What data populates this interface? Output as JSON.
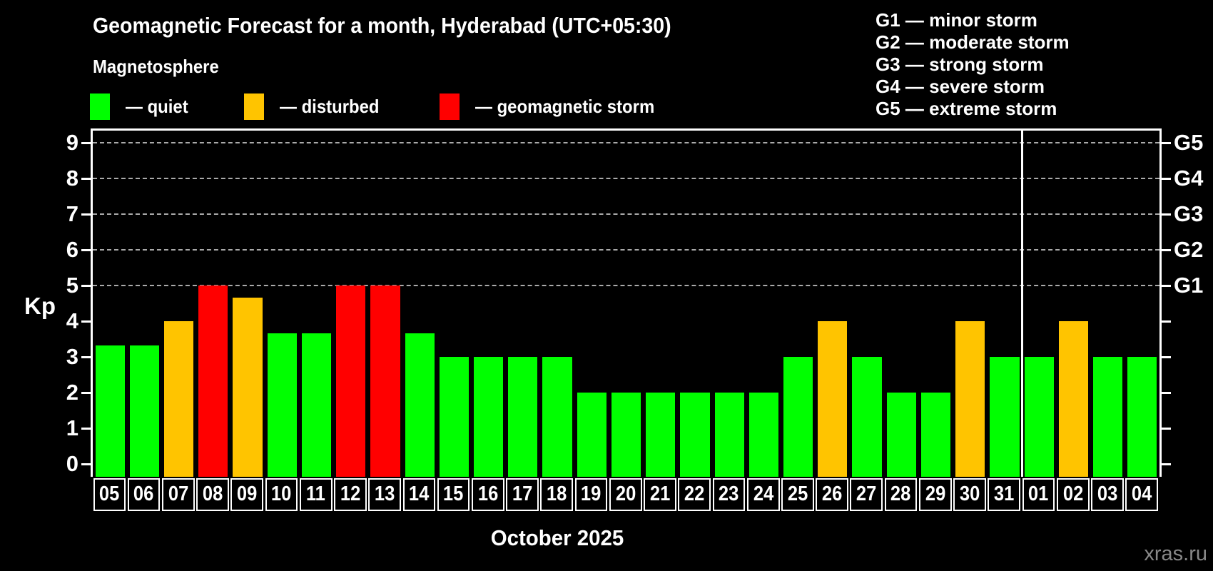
{
  "header": {
    "title": "Geomagnetic Forecast for a month, Hyderabad (UTC+05:30)",
    "subtitle": "Magnetosphere"
  },
  "legend": {
    "items": [
      {
        "status": "quiet",
        "label": "— quiet"
      },
      {
        "status": "disturbed",
        "label": "— disturbed"
      },
      {
        "status": "storm",
        "label": "— geomagnetic storm"
      }
    ]
  },
  "g_legend": {
    "lines": [
      "G1 — minor storm",
      "G2 — moderate storm",
      "G3 — strong storm",
      "G4 — severe storm",
      "G5 — extreme storm"
    ]
  },
  "colors": {
    "quiet": "#00ff00",
    "disturbed": "#ffc400",
    "storm": "#ff0000",
    "grid": "#aaaaaa",
    "axis": "#ffffff",
    "background": "#000000",
    "watermark": "#888888"
  },
  "chart_data": {
    "type": "bar",
    "title": "Geomagnetic Forecast for a month, Hyderabad (UTC+05:30)",
    "subtitle": "Magnetosphere",
    "xlabel": "October 2025",
    "ylabel": "Kp",
    "ylim": [
      0,
      9
    ],
    "y_ticks": [
      0,
      1,
      2,
      3,
      4,
      5,
      6,
      7,
      8,
      9
    ],
    "grid": "dashed horizontal lines at Kp 5,6,7,8,9",
    "legend_position": "top-left",
    "categories": [
      "05",
      "06",
      "07",
      "08",
      "09",
      "10",
      "11",
      "12",
      "13",
      "14",
      "15",
      "16",
      "17",
      "18",
      "19",
      "20",
      "21",
      "22",
      "23",
      "24",
      "25",
      "26",
      "27",
      "28",
      "29",
      "30",
      "31",
      "01",
      "02",
      "03",
      "04"
    ],
    "values": [
      3.33,
      3.33,
      4,
      5,
      4.67,
      3.67,
      3.67,
      5,
      5,
      3.67,
      3,
      3,
      3,
      3,
      2,
      2,
      2,
      2,
      2,
      2,
      3,
      4,
      3,
      2,
      2,
      4,
      3,
      3,
      4,
      3,
      3
    ],
    "statuses": [
      "quiet",
      "quiet",
      "disturbed",
      "storm",
      "disturbed",
      "quiet",
      "quiet",
      "storm",
      "storm",
      "quiet",
      "quiet",
      "quiet",
      "quiet",
      "quiet",
      "quiet",
      "quiet",
      "quiet",
      "quiet",
      "quiet",
      "quiet",
      "quiet",
      "disturbed",
      "quiet",
      "quiet",
      "quiet",
      "disturbed",
      "quiet",
      "quiet",
      "disturbed",
      "quiet",
      "quiet"
    ],
    "month_boundary_after_index": 26,
    "right_axis_labels": [
      {
        "label": "G1",
        "kp": 5
      },
      {
        "label": "G2",
        "kp": 6
      },
      {
        "label": "G3",
        "kp": 7
      },
      {
        "label": "G4",
        "kp": 8
      },
      {
        "label": "G5",
        "kp": 9
      }
    ]
  },
  "footer": {
    "month_label": "October 2025",
    "watermark": "xras.ru"
  }
}
